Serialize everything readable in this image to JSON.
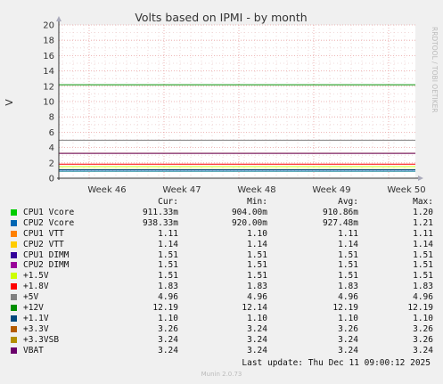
{
  "chart_data": {
    "type": "line",
    "title": "Volts based on IPMI - by month",
    "ylabel": "V",
    "ylim": [
      0,
      20
    ],
    "y_ticks": [
      "0",
      "2",
      "4",
      "6",
      "8",
      "10",
      "12",
      "14",
      "16",
      "18",
      "20"
    ],
    "x_ticks": [
      "Week 46",
      "Week 47",
      "Week 48",
      "Week 49",
      "Week 50"
    ],
    "grid": true,
    "side_text": "RRDTOOL / TOBI OETIKER",
    "columns": [
      "Cur:",
      "Min:",
      "Avg:",
      "Max:"
    ],
    "series": [
      {
        "name": "CPU1 Vcore",
        "color": "#00cc00",
        "cur": "911.33m",
        "min": "904.00m",
        "avg": "910.86m",
        "max": "1.20",
        "value": 0.91
      },
      {
        "name": "CPU2 Vcore",
        "color": "#0066b3",
        "cur": "938.33m",
        "min": "920.00m",
        "avg": "927.48m",
        "max": "1.21",
        "value": 0.93
      },
      {
        "name": "CPU1 VTT",
        "color": "#ff8000",
        "cur": "1.11",
        "min": "1.10",
        "avg": "1.11",
        "max": "1.11",
        "value": 1.11
      },
      {
        "name": "CPU2 VTT",
        "color": "#ffcc00",
        "cur": "1.14",
        "min": "1.14",
        "avg": "1.14",
        "max": "1.14",
        "value": 1.14
      },
      {
        "name": "CPU1 DIMM",
        "color": "#330099",
        "cur": "1.51",
        "min": "1.51",
        "avg": "1.51",
        "max": "1.51",
        "value": 1.51
      },
      {
        "name": "CPU2 DIMM",
        "color": "#990099",
        "cur": "1.51",
        "min": "1.51",
        "avg": "1.51",
        "max": "1.51",
        "value": 1.51
      },
      {
        "name": "+1.5V",
        "color": "#ccff00",
        "cur": "1.51",
        "min": "1.51",
        "avg": "1.51",
        "max": "1.51",
        "value": 1.51
      },
      {
        "name": "+1.8V",
        "color": "#ff0000",
        "cur": "1.83",
        "min": "1.83",
        "avg": "1.83",
        "max": "1.83",
        "value": 1.83
      },
      {
        "name": "+5V",
        "color": "#808080",
        "cur": "4.96",
        "min": "4.96",
        "avg": "4.96",
        "max": "4.96",
        "value": 4.96
      },
      {
        "name": "+12V",
        "color": "#008f00",
        "cur": "12.19",
        "min": "12.14",
        "avg": "12.19",
        "max": "12.19",
        "value": 12.19
      },
      {
        "name": "+1.1V",
        "color": "#00487d",
        "cur": "1.10",
        "min": "1.10",
        "avg": "1.10",
        "max": "1.10",
        "value": 1.1
      },
      {
        "name": "+3.3V",
        "color": "#b35a00",
        "cur": "3.26",
        "min": "3.24",
        "avg": "3.26",
        "max": "3.26",
        "value": 3.26
      },
      {
        "name": "+3.3VSB",
        "color": "#b38f00",
        "cur": "3.24",
        "min": "3.24",
        "avg": "3.24",
        "max": "3.26",
        "value": 3.24
      },
      {
        "name": "VBAT",
        "color": "#6b006b",
        "cur": "3.24",
        "min": "3.24",
        "avg": "3.24",
        "max": "3.24",
        "value": 3.24
      }
    ]
  },
  "footer": {
    "last_update": "Last update: Thu Dec 11 09:00:12 2025",
    "munin": "Munin 2.0.73"
  }
}
